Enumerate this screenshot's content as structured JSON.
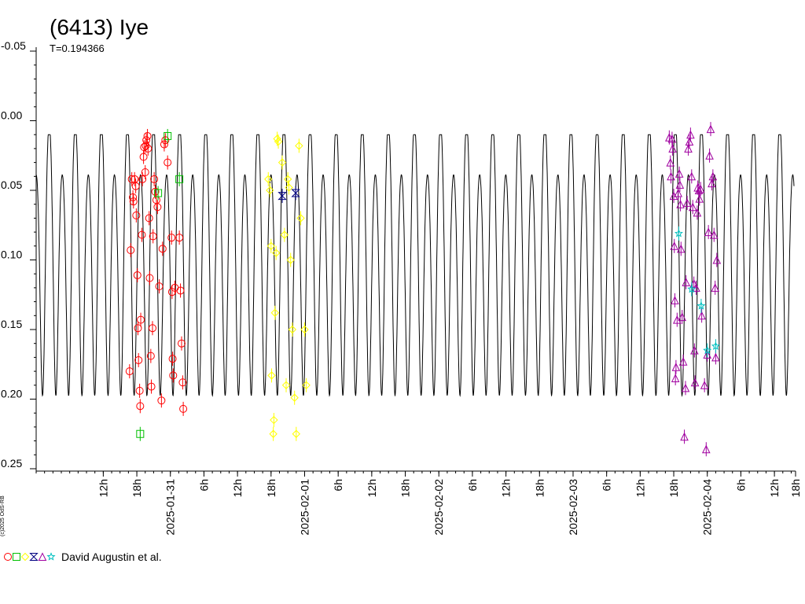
{
  "chart_data": {
    "type": "scatter",
    "title": "(6413) Iye",
    "subtitle": "T=0.194366",
    "credit": "(c)2025 OdS-RB",
    "ylim": [
      -0.05,
      0.25
    ],
    "y_reversed": true,
    "y_ticks": [
      {
        "value": -0.05,
        "label": "-0.05"
      },
      {
        "value": 0.0,
        "label": "0.00"
      },
      {
        "value": 0.05,
        "label": "0.05"
      },
      {
        "value": 0.1,
        "label": "0.10"
      },
      {
        "value": 0.15,
        "label": "0.15"
      },
      {
        "value": 0.2,
        "label": "0.20"
      },
      {
        "value": 0.25,
        "label": "0.25"
      }
    ],
    "x_range_hours": [
      0,
      135.5
    ],
    "x_tick_labels": [
      {
        "hours": 12,
        "label": "12h"
      },
      {
        "hours": 18,
        "label": "18h"
      },
      {
        "hours": 24,
        "label": "2025-01-31"
      },
      {
        "hours": 30,
        "label": "6h"
      },
      {
        "hours": 36,
        "label": "12h"
      },
      {
        "hours": 42,
        "label": "18h"
      },
      {
        "hours": 48,
        "label": "2025-02-01"
      },
      {
        "hours": 54,
        "label": "6h"
      },
      {
        "hours": 60,
        "label": "12h"
      },
      {
        "hours": 66,
        "label": "18h"
      },
      {
        "hours": 72,
        "label": "2025-02-02"
      },
      {
        "hours": 78,
        "label": "6h"
      },
      {
        "hours": 84,
        "label": "12h"
      },
      {
        "hours": 90,
        "label": "18h"
      },
      {
        "hours": 96,
        "label": "2025-02-03"
      },
      {
        "hours": 102,
        "label": "6h"
      },
      {
        "hours": 108,
        "label": "12h"
      },
      {
        "hours": 114,
        "label": "18h"
      },
      {
        "hours": 120,
        "label": "2025-02-04"
      },
      {
        "hours": 126,
        "label": "6h"
      },
      {
        "hours": 132,
        "label": "12h"
      },
      {
        "hours": 138,
        "label": "18h"
      }
    ],
    "model_curve": {
      "period_hours": 4.66478,
      "color": "#000000",
      "minima": [
        0.043,
        0.225
      ],
      "maxima": [
        0.01,
        0.188
      ]
    },
    "series": [
      {
        "marker": "circle",
        "color": "#ff0000",
        "points": [
          [
            16.7,
            0.18
          ],
          [
            16.9,
            0.093
          ],
          [
            17.1,
            0.042
          ],
          [
            17.3,
            0.055
          ],
          [
            17.4,
            0.058
          ],
          [
            17.6,
            0.042
          ],
          [
            17.8,
            0.047
          ],
          [
            17.9,
            0.068
          ],
          [
            18.1,
            0.111
          ],
          [
            18.2,
            0.149
          ],
          [
            18.3,
            0.172
          ],
          [
            18.5,
            0.194
          ],
          [
            18.6,
            0.205
          ],
          [
            18.7,
            0.143
          ],
          [
            18.9,
            0.082
          ],
          [
            19.0,
            0.042
          ],
          [
            19.2,
            0.026
          ],
          [
            19.3,
            0.019
          ],
          [
            19.5,
            0.037
          ],
          [
            19.6,
            0.018
          ],
          [
            19.7,
            0.014
          ],
          [
            19.9,
            0.011
          ],
          [
            20.0,
            0.02
          ],
          [
            20.2,
            0.07
          ],
          [
            20.3,
            0.113
          ],
          [
            20.5,
            0.169
          ],
          [
            20.6,
            0.191
          ],
          [
            20.8,
            0.149
          ],
          [
            20.9,
            0.083
          ],
          [
            21.1,
            0.042
          ],
          [
            21.3,
            0.051
          ],
          [
            21.5,
            0.057
          ],
          [
            21.7,
            0.062
          ],
          [
            22.0,
            0.119
          ],
          [
            22.4,
            0.201
          ],
          [
            22.6,
            0.092
          ],
          [
            22.9,
            0.017
          ],
          [
            23.1,
            0.014
          ],
          [
            23.5,
            0.03
          ],
          [
            24.2,
            0.084
          ],
          [
            24.3,
            0.123
          ],
          [
            24.4,
            0.171
          ],
          [
            24.5,
            0.183
          ],
          [
            24.8,
            0.12
          ],
          [
            25.6,
            0.084
          ],
          [
            25.8,
            0.122
          ],
          [
            26.0,
            0.16
          ],
          [
            26.2,
            0.188
          ],
          [
            26.3,
            0.207
          ]
        ]
      },
      {
        "marker": "square",
        "color": "#00c000",
        "points": [
          [
            18.6,
            0.225
          ],
          [
            21.8,
            0.052
          ],
          [
            23.5,
            0.011
          ],
          [
            25.6,
            0.042
          ]
        ]
      },
      {
        "marker": "diamond",
        "color": "#ffff00",
        "points": [
          [
            41.5,
            0.042
          ],
          [
            41.8,
            0.05
          ],
          [
            42.0,
            0.09
          ],
          [
            42.1,
            0.183
          ],
          [
            42.4,
            0.225
          ],
          [
            42.5,
            0.215
          ],
          [
            42.7,
            0.138
          ],
          [
            42.9,
            0.095
          ],
          [
            43.1,
            0.013
          ],
          [
            43.3,
            0.015
          ],
          [
            44.0,
            0.03
          ],
          [
            44.4,
            0.082
          ],
          [
            44.7,
            0.19
          ],
          [
            45.0,
            0.042
          ],
          [
            45.2,
            0.048
          ],
          [
            45.5,
            0.1
          ],
          [
            45.8,
            0.15
          ],
          [
            46.2,
            0.199
          ],
          [
            46.5,
            0.225
          ],
          [
            47.0,
            0.018
          ],
          [
            47.3,
            0.07
          ],
          [
            48.0,
            0.15
          ],
          [
            48.3,
            0.19
          ]
        ]
      },
      {
        "marker": "hourglass",
        "color": "#000080",
        "points": [
          [
            44.0,
            0.054
          ],
          [
            46.4,
            0.052
          ]
        ]
      },
      {
        "marker": "triangle",
        "color": "#a000a0",
        "points": [
          [
            113.2,
            0.012
          ],
          [
            113.4,
            0.03
          ],
          [
            113.5,
            0.04
          ],
          [
            113.7,
            0.013
          ],
          [
            113.8,
            0.02
          ],
          [
            114.0,
            0.054
          ],
          [
            114.1,
            0.09
          ],
          [
            114.2,
            0.129
          ],
          [
            114.3,
            0.185
          ],
          [
            114.4,
            0.177
          ],
          [
            114.6,
            0.143
          ],
          [
            114.8,
            0.052
          ],
          [
            115.0,
            0.038
          ],
          [
            115.1,
            0.046
          ],
          [
            115.2,
            0.06
          ],
          [
            115.3,
            0.092
          ],
          [
            115.5,
            0.141
          ],
          [
            115.7,
            0.173
          ],
          [
            115.9,
            0.227
          ],
          [
            116.1,
            0.192
          ],
          [
            116.2,
            0.116
          ],
          [
            116.4,
            0.059
          ],
          [
            116.6,
            0.02
          ],
          [
            116.8,
            0.015
          ],
          [
            117.0,
            0.01
          ],
          [
            117.2,
            0.04
          ],
          [
            117.4,
            0.062
          ],
          [
            117.6,
            0.117
          ],
          [
            117.7,
            0.165
          ],
          [
            117.8,
            0.188
          ],
          [
            118.0,
            0.12
          ],
          [
            118.2,
            0.066
          ],
          [
            118.3,
            0.048
          ],
          [
            118.5,
            0.05
          ],
          [
            118.6,
            0.056
          ],
          [
            118.8,
            0.049
          ],
          [
            119.0,
            0.14
          ],
          [
            119.5,
            0.19
          ],
          [
            119.8,
            0.236
          ],
          [
            120.0,
            0.168
          ],
          [
            120.2,
            0.08
          ],
          [
            120.4,
            0.025
          ],
          [
            120.6,
            0.006
          ],
          [
            120.8,
            0.045
          ],
          [
            121.0,
            0.04
          ],
          [
            121.2,
            0.082
          ],
          [
            121.4,
            0.12
          ],
          [
            121.5,
            0.17
          ],
          [
            121.7,
            0.1
          ]
        ]
      },
      {
        "marker": "star",
        "color": "#00c0c0",
        "points": [
          [
            114.9,
            0.081
          ],
          [
            117.2,
            0.121
          ],
          [
            118.9,
            0.133
          ],
          [
            120.0,
            0.165
          ],
          [
            121.5,
            0.162
          ]
        ]
      }
    ],
    "legend": {
      "markers": [
        {
          "marker": "circle",
          "color": "#ff0000"
        },
        {
          "marker": "square",
          "color": "#00c000"
        },
        {
          "marker": "diamond",
          "color": "#ffff00"
        },
        {
          "marker": "hourglass",
          "color": "#000080"
        },
        {
          "marker": "triangle",
          "color": "#a000a0"
        },
        {
          "marker": "star",
          "color": "#00c0c0"
        }
      ],
      "text": "David Augustin et al."
    }
  }
}
